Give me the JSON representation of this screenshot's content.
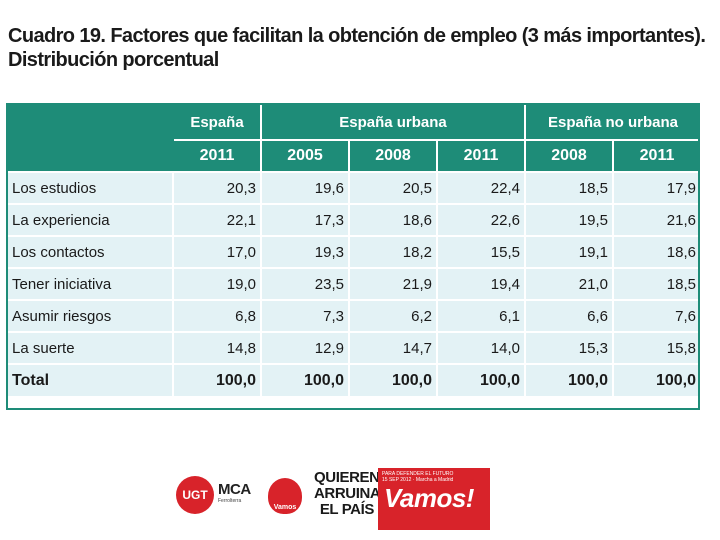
{
  "title": {
    "line1": "Cuadro 19. Factores que facilitan la obtención de empleo (3 más importantes).",
    "line2": "Distribución porcentual"
  },
  "table": {
    "groups": [
      "España",
      "España urbana",
      "España no urbana"
    ],
    "years": [
      "2011",
      "2005",
      "2008",
      "2011",
      "2008",
      "2011"
    ],
    "rows": [
      {
        "label": "Los estudios",
        "values": [
          "20,3",
          "19,6",
          "20,5",
          "22,4",
          "18,5",
          "17,9"
        ]
      },
      {
        "label": "La experiencia",
        "values": [
          "22,1",
          "17,3",
          "18,6",
          "22,6",
          "19,5",
          "21,6"
        ]
      },
      {
        "label": "Los contactos",
        "values": [
          "17,0",
          "19,3",
          "18,2",
          "15,5",
          "19,1",
          "18,6"
        ]
      },
      {
        "label": "Tener iniciativa",
        "values": [
          "19,0",
          "23,5",
          "21,9",
          "19,4",
          "21,0",
          "18,5"
        ]
      },
      {
        "label": "Asumir riesgos",
        "values": [
          "6,8",
          "7,3",
          "6,2",
          "6,1",
          "6,6",
          "7,6"
        ]
      },
      {
        "label": "La suerte",
        "values": [
          "14,8",
          "12,9",
          "14,7",
          "14,0",
          "15,3",
          "15,8"
        ]
      }
    ],
    "total": {
      "label": "Total",
      "values": [
        "100,0",
        "100,0",
        "100,0",
        "100,0",
        "100,0",
        "100,0"
      ]
    }
  },
  "logos": {
    "ugt": "UGT",
    "mca": "MCA",
    "mca_sub": "Ferrolterra",
    "vamos_small": "Vamos",
    "quieren": [
      "QUIEREN",
      "ARRUINAR",
      "EL PAÍS"
    ],
    "banner_line1": "PARA DEFENDER EL FUTURO",
    "banner_line2": "15 SEP 2012 · Marcha a Madrid",
    "banner_main": "Vamos!"
  },
  "colors": {
    "header_bg": "#1e8c78",
    "cell_bg": "#e3f2f5",
    "accent_red": "#d8232a"
  }
}
